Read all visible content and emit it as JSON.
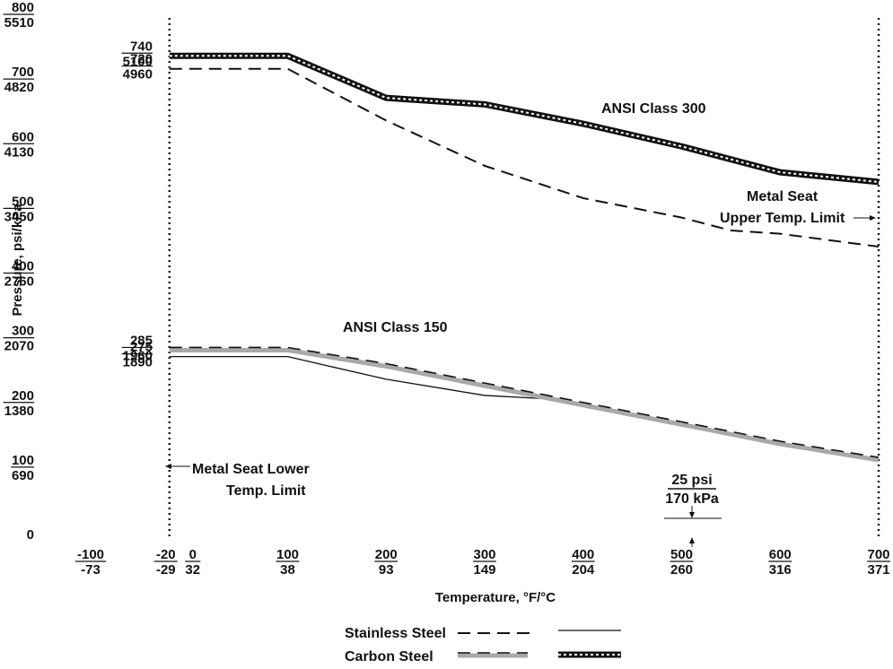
{
  "chart_data": {
    "type": "line",
    "xlabel": "Temperature, °F/°C",
    "ylabel": "Pressure, psi/kPa",
    "xlim": [
      -100,
      700
    ],
    "ylim": [
      0,
      800
    ],
    "grid": false,
    "x_ticks": [
      {
        "x": -100,
        "top": "-100",
        "bottom": "-73"
      },
      {
        "x": -20,
        "top": "-20",
        "bottom": "-29"
      },
      {
        "x": 0,
        "top": "0",
        "bottom": "32"
      },
      {
        "x": 100,
        "top": "100",
        "bottom": "38"
      },
      {
        "x": 200,
        "top": "200",
        "bottom": "93"
      },
      {
        "x": 300,
        "top": "300",
        "bottom": "149"
      },
      {
        "x": 400,
        "top": "400",
        "bottom": "204"
      },
      {
        "x": 500,
        "top": "500",
        "bottom": "260"
      },
      {
        "x": 600,
        "top": "600",
        "bottom": "316"
      },
      {
        "x": 700,
        "top": "700",
        "bottom": "371"
      }
    ],
    "y_ticks": [
      {
        "y": 800,
        "top": "800",
        "bottom": "5510"
      },
      {
        "y": 700,
        "top": "700",
        "bottom": "4820"
      },
      {
        "y": 600,
        "top": "600",
        "bottom": "4130"
      },
      {
        "y": 500,
        "top": "500",
        "bottom": "3450"
      },
      {
        "y": 400,
        "top": "400",
        "bottom": "2760"
      },
      {
        "y": 300,
        "top": "300",
        "bottom": "2070"
      },
      {
        "y": 200,
        "top": "200",
        "bottom": "1380"
      },
      {
        "y": 100,
        "top": "100",
        "bottom": "690"
      },
      {
        "y": 0,
        "top": "0",
        "bottom": ""
      }
    ],
    "series": [
      {
        "style": "ss300",
        "x": [
          -20,
          100,
          200,
          300,
          400,
          500,
          550,
          600,
          700
        ],
        "y": [
          720,
          720,
          640,
          570,
          520,
          490,
          470,
          465,
          445
        ]
      },
      {
        "style": "cs300",
        "x": [
          -20,
          100,
          200,
          300,
          400,
          500,
          600,
          700
        ],
        "y": [
          740,
          740,
          675,
          665,
          635,
          600,
          560,
          545
        ]
      },
      {
        "style": "ss150",
        "x": [
          -20,
          100,
          200,
          300,
          360
        ],
        "y": [
          275,
          275,
          240,
          215,
          210
        ]
      },
      {
        "style": "cs150",
        "x": [
          -20,
          100,
          200,
          300,
          400,
          500,
          600,
          700
        ],
        "y": [
          285,
          285,
          260,
          230,
          200,
          170,
          140,
          115
        ]
      }
    ],
    "value_labels": [
      {
        "x": -20,
        "y": 740,
        "top": "740",
        "bottom": "5100"
      },
      {
        "x": -20,
        "y": 720,
        "top": "720",
        "bottom": "4960"
      },
      {
        "x": -20,
        "y": 285,
        "top": "285",
        "bottom": "1960"
      },
      {
        "x": -20,
        "y": 275,
        "top": "275",
        "bottom": "1890"
      }
    ],
    "annotations": {
      "class300": "ANSI Class 300",
      "class150": "ANSI Class 150",
      "upper_line1": "Metal Seat",
      "upper_line2": "Upper Temp. Limit",
      "lower_line1": "Metal Seat Lower",
      "lower_line2": "Temp. Limit",
      "psi25_top": "25 psi",
      "psi25_bottom": "170 kPa"
    },
    "legend": {
      "placement": "bottom",
      "stainless": "Stainless Steel",
      "carbon": "Carbon Steel"
    }
  }
}
